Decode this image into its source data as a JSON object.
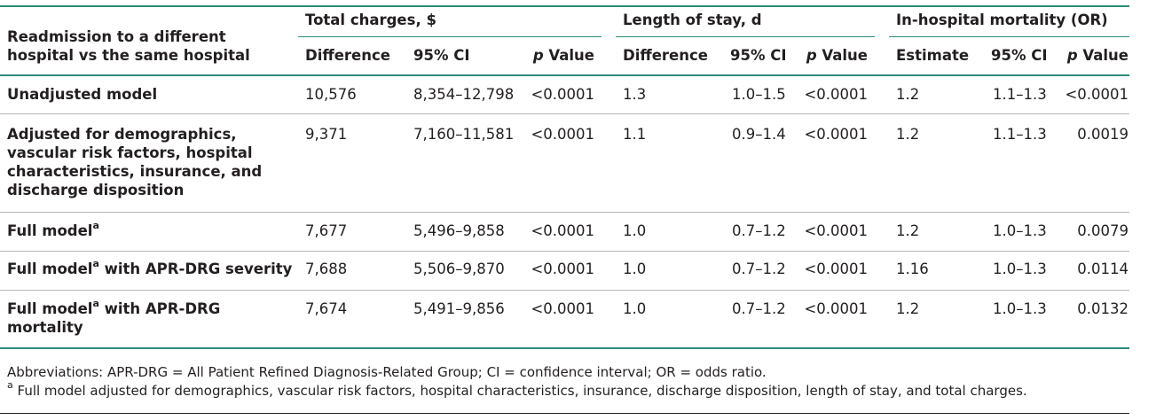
{
  "header": {
    "stub_label": "Readmission to a different hospital vs the same hospital",
    "groups": [
      {
        "title": "Total charges, $",
        "cols": [
          "Difference",
          "95% CI",
          "p Value"
        ]
      },
      {
        "title": "Length of stay, d",
        "cols": [
          "Difference",
          "95% CI",
          "p Value"
        ]
      },
      {
        "title": "In-hospital mortality (OR)",
        "cols": [
          "Estimate",
          "95% CI",
          "p Value"
        ]
      }
    ]
  },
  "rows": [
    {
      "label": "Unadjusted model",
      "sup": "",
      "label_suffix": "",
      "cells": [
        "10,576",
        "8,354–12,798",
        "<0.0001",
        "1.3",
        "1.0–1.5",
        "<0.0001",
        "1.2",
        "1.1–1.3",
        "<0.0001"
      ]
    },
    {
      "label": "Adjusted for demographics, vascular risk factors, hospital characteristics, insurance, and discharge disposition",
      "sup": "",
      "label_suffix": "",
      "cells": [
        "9,371",
        "7,160–11,581",
        "<0.0001",
        "1.1",
        "0.9–1.4",
        "<0.0001",
        "1.2",
        "1.1–1.3",
        "0.0019"
      ]
    },
    {
      "label": "Full model",
      "sup": "a",
      "label_suffix": "",
      "cells": [
        "7,677",
        "5,496–9,858",
        "<0.0001",
        "1.0",
        "0.7–1.2",
        "<0.0001",
        "1.2",
        "1.0–1.3",
        "0.0079"
      ]
    },
    {
      "label": "Full model",
      "sup": "a",
      "label_suffix": " with APR-DRG severity",
      "cells": [
        "7,688",
        "5,506–9,870",
        "<0.0001",
        "1.0",
        "0.7–1.2",
        "<0.0001",
        "1.16",
        "1.0–1.3",
        "0.0114"
      ]
    },
    {
      "label": "Full model",
      "sup": "a",
      "label_suffix": " with APR-DRG mortality",
      "cells": [
        "7,674",
        "5,491–9,856",
        "<0.0001",
        "1.0",
        "0.7–1.2",
        "<0.0001",
        "1.2",
        "1.0–1.3",
        "0.0132"
      ]
    }
  ],
  "footnotes": {
    "abbreviations": "Abbreviations: APR-DRG = All Patient Refined Diagnosis-Related Group; CI = confidence interval; OR = odds ratio.",
    "a_marker": "a",
    "a_text": " Full model adjusted for demographics, vascular risk factors, hospital characteristics, insurance, discharge disposition, length of stay, and total charges."
  },
  "colors": {
    "rule": "#2b8c7a",
    "row_rule": "#b7b7b7",
    "text": "#231f20"
  }
}
